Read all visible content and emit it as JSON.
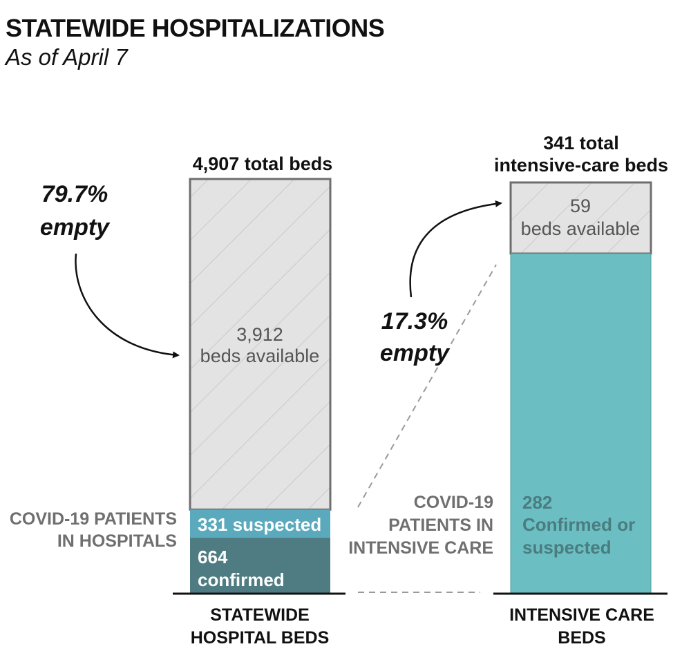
{
  "title": "STATEWIDE HOSPITALIZATIONS",
  "subtitle": "As of April 7",
  "colors": {
    "available_fill": "#e3e3e3",
    "available_stroke": "#6e6e6e",
    "suspected": "#5aa9bc",
    "confirmed": "#4e7c82",
    "icu_patients": "#6bbfc2",
    "label_gray": "#6f6f6f",
    "text_dark": "#4a4a4a"
  },
  "chart_data": [
    {
      "type": "bar",
      "stacked": true,
      "category": "STATEWIDE\nHOSPITAL BEDS",
      "category_lines": [
        "STATEWIDE",
        "HOSPITAL BEDS"
      ],
      "total": 4907,
      "total_label": "4,907 total beds",
      "segments": [
        {
          "name": "confirmed",
          "value": 664,
          "label_lines": [
            "664",
            "confirmed"
          ]
        },
        {
          "name": "suspected",
          "value": 331,
          "label_lines": [
            "331 suspected"
          ]
        },
        {
          "name": "beds available",
          "value": 3912,
          "label_lines": [
            "3,912",
            "beds available"
          ]
        }
      ],
      "group_label_lines": [
        "COVID-19 PATIENTS",
        "IN HOSPITALS"
      ],
      "annotation_lines": [
        "79.7%",
        "empty"
      ]
    },
    {
      "type": "bar",
      "stacked": true,
      "category": "INTENSIVE CARE\nBEDS",
      "category_lines": [
        "INTENSIVE CARE",
        "BEDS"
      ],
      "total": 341,
      "total_label_lines": [
        "341 total",
        "intensive-care beds"
      ],
      "segments": [
        {
          "name": "Confirmed or suspected",
          "value": 282,
          "label_lines": [
            "282",
            "Confirmed or",
            "suspected"
          ]
        },
        {
          "name": "beds available",
          "value": 59,
          "label_lines": [
            "59",
            "beds available"
          ]
        }
      ],
      "group_label_lines": [
        "COVID-19",
        "PATIENTS IN",
        "INTENSIVE CARE"
      ],
      "annotation_lines": [
        "17.3%",
        "empty"
      ]
    }
  ]
}
